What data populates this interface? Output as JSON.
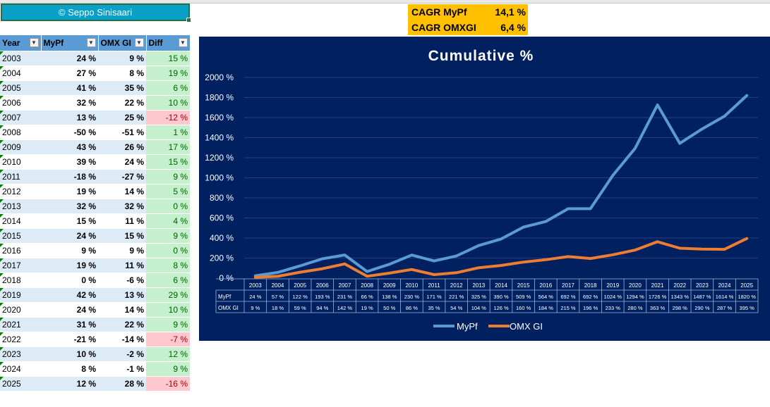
{
  "copyright": "© Seppo Sinisaari",
  "cagr": [
    {
      "label": "CAGR MyPf",
      "value": "14,1 %"
    },
    {
      "label": "CAGR OMXGI",
      "value": "6,4 %"
    }
  ],
  "table": {
    "headers": [
      "Year",
      "MyPf",
      "OMX GI",
      "Diff"
    ],
    "rows": [
      {
        "year": "2003",
        "mypf": "24 %",
        "omx": "9 %",
        "diff": "15 %",
        "neg": false
      },
      {
        "year": "2004",
        "mypf": "27 %",
        "omx": "8 %",
        "diff": "19 %",
        "neg": false
      },
      {
        "year": "2005",
        "mypf": "41 %",
        "omx": "35 %",
        "diff": "6 %",
        "neg": false
      },
      {
        "year": "2006",
        "mypf": "32 %",
        "omx": "22 %",
        "diff": "10 %",
        "neg": false
      },
      {
        "year": "2007",
        "mypf": "13 %",
        "omx": "25 %",
        "diff": "-12 %",
        "neg": true
      },
      {
        "year": "2008",
        "mypf": "-50 %",
        "omx": "-51 %",
        "diff": "1 %",
        "neg": false
      },
      {
        "year": "2009",
        "mypf": "43 %",
        "omx": "26 %",
        "diff": "17 %",
        "neg": false
      },
      {
        "year": "2010",
        "mypf": "39 %",
        "omx": "24 %",
        "diff": "15 %",
        "neg": false
      },
      {
        "year": "2011",
        "mypf": "-18 %",
        "omx": "-27 %",
        "diff": "9 %",
        "neg": false
      },
      {
        "year": "2012",
        "mypf": "19 %",
        "omx": "14 %",
        "diff": "5 %",
        "neg": false
      },
      {
        "year": "2013",
        "mypf": "32 %",
        "omx": "32 %",
        "diff": "0 %",
        "neg": false
      },
      {
        "year": "2014",
        "mypf": "15 %",
        "omx": "11 %",
        "diff": "4 %",
        "neg": false
      },
      {
        "year": "2015",
        "mypf": "24 %",
        "omx": "15 %",
        "diff": "9 %",
        "neg": false
      },
      {
        "year": "2016",
        "mypf": "9 %",
        "omx": "9 %",
        "diff": "0 %",
        "neg": false
      },
      {
        "year": "2017",
        "mypf": "19 %",
        "omx": "11 %",
        "diff": "8 %",
        "neg": false
      },
      {
        "year": "2018",
        "mypf": "0 %",
        "omx": "-6 %",
        "diff": "6 %",
        "neg": false
      },
      {
        "year": "2019",
        "mypf": "42 %",
        "omx": "13 %",
        "diff": "29 %",
        "neg": false
      },
      {
        "year": "2020",
        "mypf": "24 %",
        "omx": "14 %",
        "diff": "10 %",
        "neg": false
      },
      {
        "year": "2021",
        "mypf": "31 %",
        "omx": "22 %",
        "diff": "9 %",
        "neg": false
      },
      {
        "year": "2022",
        "mypf": "-21 %",
        "omx": "-14 %",
        "diff": "-7 %",
        "neg": true
      },
      {
        "year": "2023",
        "mypf": "10 %",
        "omx": "-2 %",
        "diff": "12 %",
        "neg": false
      },
      {
        "year": "2024",
        "mypf": "8 %",
        "omx": "-1 %",
        "diff": "9 %",
        "neg": false
      },
      {
        "year": "2025",
        "mypf": "12 %",
        "omx": "28 %",
        "diff": "-16 %",
        "neg": true
      }
    ]
  },
  "colors": {
    "chart_bg": "#002060",
    "mypf_line": "#5b9bd5",
    "omx_line": "#ed7d31",
    "gridline": "#1f3f7f",
    "header_blue": "#5b9bd5",
    "row_band": "#ddebf7",
    "cagr_bg": "#ffc000",
    "pos_fill": "#c6efce",
    "neg_fill": "#ffc7ce"
  },
  "chart_data": {
    "type": "line",
    "title": "Cumulative %",
    "categories": [
      "2003",
      "2004",
      "2005",
      "2006",
      "2007",
      "2008",
      "2009",
      "2010",
      "2011",
      "2012",
      "2013",
      "2014",
      "2015",
      "2016",
      "2017",
      "2018",
      "2019",
      "2020",
      "2021",
      "2022",
      "2023",
      "2024",
      "2025"
    ],
    "series": [
      {
        "name": "MyPf",
        "values": [
          24,
          57,
          122,
          193,
          231,
          66,
          138,
          230,
          171,
          221,
          325,
          390,
          509,
          564,
          692,
          692,
          1024,
          1294,
          1726,
          1343,
          1487,
          1614,
          1820
        ],
        "labels": [
          "24 %",
          "57 %",
          "122 %",
          "193 %",
          "231 %",
          "66 %",
          "138 %",
          "230 %",
          "171 %",
          "221 %",
          "325 %",
          "390 %",
          "509 %",
          "564 %",
          "692 %",
          "692 %",
          "1024 %",
          "1294 %",
          "1726 %",
          "1343 %",
          "1487 %",
          "1614 %",
          "1820 %"
        ]
      },
      {
        "name": "OMX GI",
        "values": [
          9,
          18,
          59,
          94,
          142,
          19,
          50,
          86,
          35,
          54,
          104,
          126,
          160,
          184,
          215,
          196,
          233,
          280,
          363,
          298,
          290,
          287,
          395
        ],
        "labels": [
          "9 %",
          "18 %",
          "59 %",
          "94 %",
          "142 %",
          "19 %",
          "50 %",
          "86 %",
          "35 %",
          "54 %",
          "104 %",
          "126 %",
          "160 %",
          "184 %",
          "215 %",
          "196 %",
          "233 %",
          "280 %",
          "363 %",
          "298 %",
          "290 %",
          "287 %",
          "395 %"
        ]
      }
    ],
    "yticks": [
      "0 %",
      "200 %",
      "400 %",
      "600 %",
      "800 %",
      "1000 %",
      "1200 %",
      "1400 %",
      "1600 %",
      "1800 %",
      "2000 %"
    ],
    "ylim": [
      0,
      2000
    ],
    "table_row_labels": [
      "MyPf",
      "OMX GI"
    ],
    "legend": [
      "MyPf",
      "OMX GI"
    ],
    "legend_position": "bottom"
  }
}
